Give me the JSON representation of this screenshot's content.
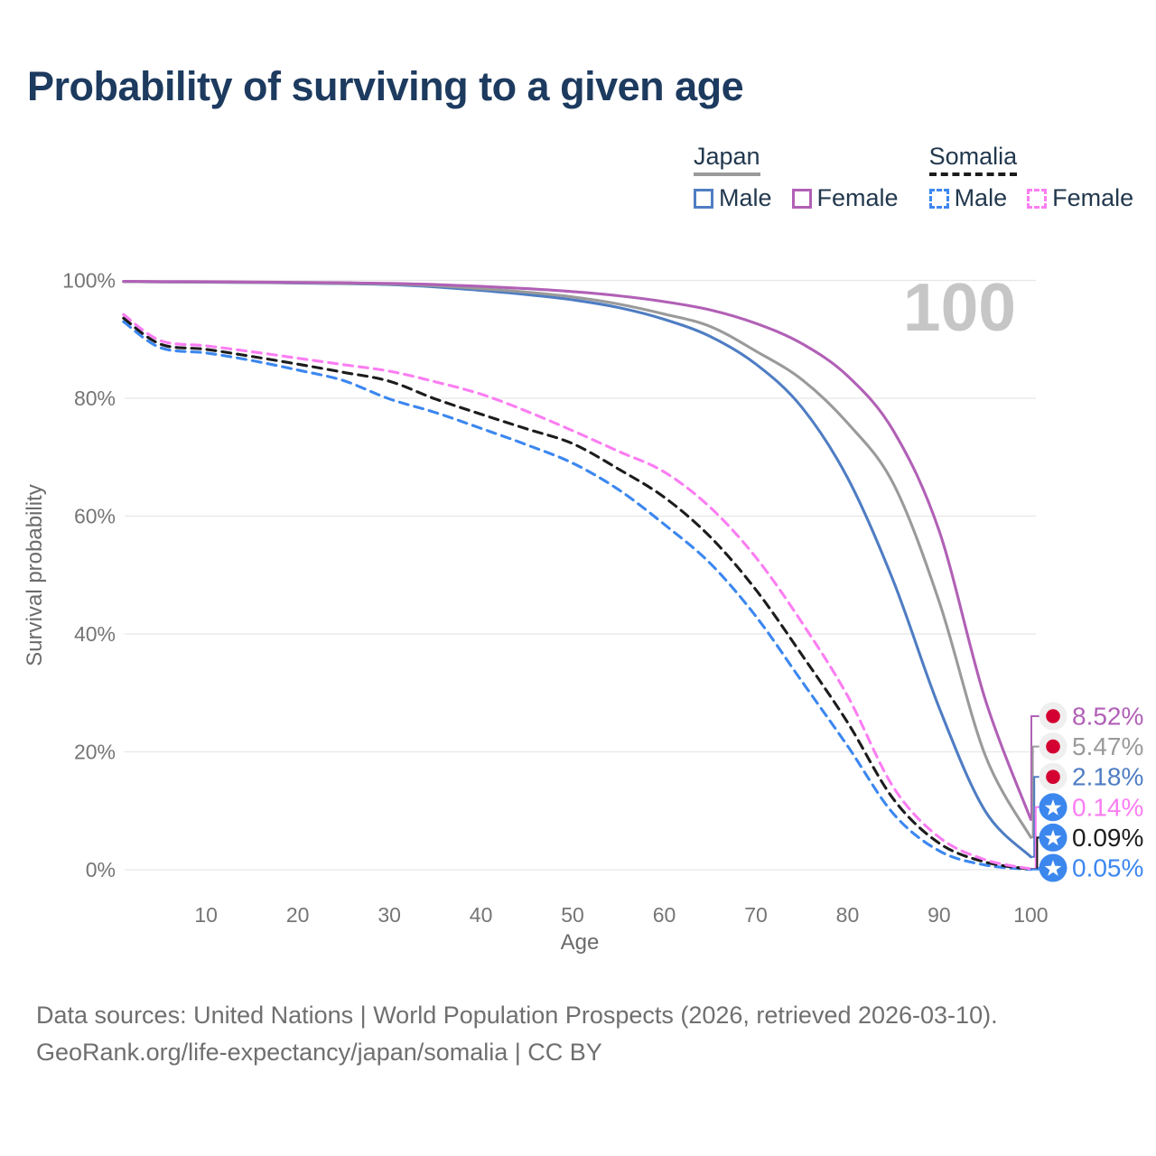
{
  "title": "Probability of surviving to a given age",
  "watermark": "100",
  "legend": {
    "groups": [
      {
        "id": "japan",
        "label": "Japan",
        "line_style": "solid",
        "underline_color": "#9a9a9a",
        "items": [
          {
            "label": "Male",
            "color": "#4f7dc3"
          },
          {
            "label": "Female",
            "color": "#b160b6"
          }
        ]
      },
      {
        "id": "somalia",
        "label": "Somalia",
        "line_style": "dashed",
        "underline_color": "#1c1c1c",
        "items": [
          {
            "label": "Male",
            "color": "#3c87f0"
          },
          {
            "label": "Female",
            "color": "#fb7df2"
          }
        ]
      }
    ]
  },
  "axes": {
    "x": {
      "label": "Age",
      "min": 1,
      "max": 100,
      "ticks": [
        {
          "value": 10,
          "label": "10"
        },
        {
          "value": 20,
          "label": "20"
        },
        {
          "value": 30,
          "label": "30"
        },
        {
          "value": 40,
          "label": "40"
        },
        {
          "value": 50,
          "label": "50"
        },
        {
          "value": 60,
          "label": "60"
        },
        {
          "value": 70,
          "label": "70"
        },
        {
          "value": 80,
          "label": "80"
        },
        {
          "value": 90,
          "label": "90"
        },
        {
          "value": 100,
          "label": "100"
        }
      ]
    },
    "y": {
      "label": "Survival probability",
      "min": 0,
      "max": 100,
      "ticks": [
        {
          "value": 0,
          "label": "0%"
        },
        {
          "value": 20,
          "label": "20%"
        },
        {
          "value": 40,
          "label": "40%"
        },
        {
          "value": 60,
          "label": "60%"
        },
        {
          "value": 80,
          "label": "80%"
        },
        {
          "value": 100,
          "label": "100%"
        }
      ]
    }
  },
  "chart_data": {
    "type": "line",
    "title": "Probability of surviving to a given age",
    "xlabel": "Age",
    "ylabel": "Survival probability",
    "x_range": [
      1,
      100
    ],
    "y_range": [
      0,
      100
    ],
    "grid": true,
    "legend_position": "top-right",
    "ages": [
      1,
      5,
      10,
      15,
      20,
      25,
      30,
      35,
      40,
      45,
      50,
      55,
      60,
      65,
      70,
      75,
      80,
      85,
      90,
      95,
      100
    ],
    "series": [
      {
        "id": "japan-female",
        "name": "Japan Female",
        "country": "Japan",
        "sex": "female",
        "color": "#b160b6",
        "dash": false,
        "flag": "japan",
        "end_label": "8.52%",
        "end_value": 8.52,
        "values": [
          99.85,
          99.8,
          99.78,
          99.72,
          99.67,
          99.6,
          99.5,
          99.3,
          99.0,
          98.6,
          98.1,
          97.4,
          96.4,
          95.0,
          92.7,
          89.3,
          83.8,
          74.5,
          57.5,
          29.0,
          8.52
        ]
      },
      {
        "id": "japan-both",
        "name": "Japan Both sexes",
        "country": "Japan",
        "sex": "both",
        "color": "#9a9a9a",
        "dash": false,
        "flag": "japan",
        "end_label": "5.47%",
        "end_value": 5.47,
        "values": [
          99.8,
          99.76,
          99.72,
          99.67,
          99.6,
          99.5,
          99.4,
          99.1,
          98.6,
          98.0,
          97.2,
          96.0,
          94.3,
          92.2,
          88.0,
          83.2,
          75.8,
          65.5,
          45.5,
          19.5,
          5.47
        ]
      },
      {
        "id": "japan-male",
        "name": "Japan Male",
        "country": "Japan",
        "sex": "male",
        "color": "#4f7dc3",
        "dash": false,
        "flag": "japan",
        "end_label": "2.18%",
        "end_value": 2.18,
        "values": [
          99.8,
          99.74,
          99.7,
          99.64,
          99.55,
          99.45,
          99.3,
          98.9,
          98.3,
          97.6,
          96.7,
          95.4,
          93.4,
          90.5,
          85.8,
          78.5,
          66.5,
          49.0,
          27.5,
          10.0,
          2.18
        ]
      },
      {
        "id": "somalia-female",
        "name": "Somalia Female",
        "country": "Somalia",
        "sex": "female",
        "color": "#fb7df2",
        "dash": true,
        "flag": "somalia",
        "end_label": "0.14%",
        "end_value": 0.14,
        "values": [
          94.2,
          89.8,
          88.9,
          87.9,
          86.8,
          85.7,
          84.6,
          82.8,
          80.7,
          77.8,
          74.5,
          71.0,
          67.5,
          61.5,
          53.0,
          42.0,
          29.5,
          14.0,
          5.5,
          1.7,
          0.14
        ]
      },
      {
        "id": "somalia-both",
        "name": "Somalia Both sexes",
        "country": "Somalia",
        "sex": "both",
        "color": "#1c1c1c",
        "dash": true,
        "flag": "somalia",
        "end_label": "0.09%",
        "end_value": 0.09,
        "values": [
          93.6,
          89.2,
          88.3,
          87.1,
          85.8,
          84.4,
          82.9,
          79.9,
          77.3,
          74.8,
          72.3,
          68.0,
          63.2,
          56.5,
          47.5,
          36.5,
          25.0,
          12.0,
          4.5,
          1.3,
          0.09
        ]
      },
      {
        "id": "somalia-male",
        "name": "Somalia Male",
        "country": "Somalia",
        "sex": "male",
        "color": "#3c87f0",
        "dash": true,
        "flag": "somalia",
        "end_label": "0.05%",
        "end_value": 0.05,
        "values": [
          93.0,
          88.6,
          87.7,
          86.4,
          84.8,
          83.0,
          79.9,
          77.6,
          74.9,
          72.1,
          69.0,
          64.5,
          58.6,
          52.0,
          43.0,
          32.0,
          21.0,
          9.5,
          3.2,
          0.8,
          0.05
        ]
      }
    ]
  },
  "flags": {
    "japan": {
      "bg": "#efefef",
      "dot": "#d40032"
    },
    "somalia": {
      "bg": "#3b87ee",
      "star": "#ffffff"
    }
  },
  "colors": {
    "title": "#1d3a5f",
    "axis_text": "#757575",
    "axis_title_text": "#6b6b6b",
    "grid": "#e7e7e7",
    "watermark": "#c6c6c6",
    "source_text": "#6f6f6f",
    "legend_text": "#22384e",
    "background": "#ffffff"
  },
  "source": {
    "line1": "Data sources: United Nations | World Population Prospects (2026, retrieved 2026-03-10).",
    "line2": "GeoRank.org/life-expectancy/japan/somalia | CC BY"
  }
}
